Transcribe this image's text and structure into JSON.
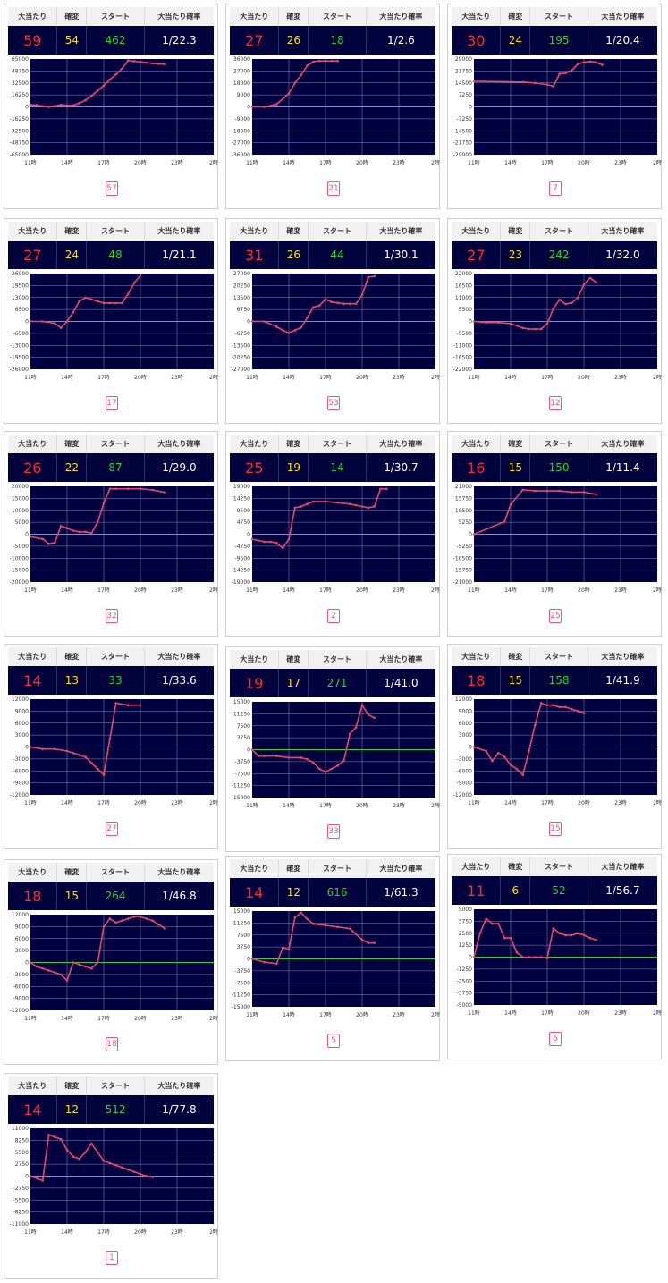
{
  "headers": {
    "hits": "大当たり",
    "kakuhen": "確変",
    "start": "スタート",
    "prob": "大当たり確率"
  },
  "x_ticks": [
    "11時",
    "14時",
    "17時",
    "20時",
    "23時",
    "2時"
  ],
  "colors": {
    "header_bg": "#f1f1f1",
    "value_bg": "#02023c",
    "hits": "#ff2a2a",
    "kakuhen": "#ffe100",
    "start": "#25d625",
    "prob": "#ffffff",
    "plot_bg": "#000040",
    "zero_line": "#3ad03a",
    "series": "#e8466e",
    "link": "#e8577a"
  },
  "cards": [
    {
      "hits": "59",
      "kakuhen": "54",
      "start": "462",
      "prob": "1/22.3",
      "page": "57"
    },
    {
      "hits": "27",
      "kakuhen": "26",
      "start": "18",
      "prob": "1/2.6",
      "page": "21"
    },
    {
      "hits": "30",
      "kakuhen": "24",
      "start": "195",
      "prob": "1/20.4",
      "page": "7"
    },
    {
      "hits": "27",
      "kakuhen": "24",
      "start": "48",
      "prob": "1/21.1",
      "page": "17"
    },
    {
      "hits": "31",
      "kakuhen": "26",
      "start": "44",
      "prob": "1/30.1",
      "page": "53"
    },
    {
      "hits": "27",
      "kakuhen": "23",
      "start": "242",
      "prob": "1/32.0",
      "page": "12"
    },
    {
      "hits": "26",
      "kakuhen": "22",
      "start": "87",
      "prob": "1/29.0",
      "page": "32"
    },
    {
      "hits": "25",
      "kakuhen": "19",
      "start": "14",
      "prob": "1/30.7",
      "page": "2"
    },
    {
      "hits": "16",
      "kakuhen": "15",
      "start": "150",
      "prob": "1/11.4",
      "page": "25"
    },
    {
      "hits": "14",
      "kakuhen": "13",
      "start": "33",
      "prob": "1/33.6",
      "page": "27"
    },
    {
      "hits": "19",
      "kakuhen": "17",
      "start": "271",
      "prob": "1/41.0",
      "page": "33"
    },
    {
      "hits": "18",
      "kakuhen": "15",
      "start": "158",
      "prob": "1/41.9",
      "page": "15"
    },
    {
      "hits": "18",
      "kakuhen": "15",
      "start": "264",
      "prob": "1/46.8",
      "page": "18"
    },
    {
      "hits": "14",
      "kakuhen": "12",
      "start": "616",
      "prob": "1/61.3",
      "page": "5"
    },
    {
      "hits": "11",
      "kakuhen": "6",
      "start": "52",
      "prob": "1/56.7",
      "page": "6"
    },
    {
      "hits": "14",
      "kakuhen": "12",
      "start": "512",
      "prob": "1/77.8",
      "page": "1"
    }
  ],
  "chart_data": [
    {
      "type": "line",
      "x_ticks": [
        "11時",
        "14時",
        "17時",
        "20時",
        "23時",
        "2時"
      ],
      "xlim": [
        11,
        26
      ],
      "ylim": [
        -65000,
        65000
      ],
      "y_ticks": [
        "65000",
        "48750",
        "32500",
        "16250",
        "0",
        "-16250",
        "-32500",
        "-48750",
        "-65000"
      ],
      "x": [
        11,
        11.5,
        12,
        12.5,
        13,
        13.5,
        14,
        14.5,
        15,
        15.5,
        16,
        16.5,
        17,
        17.5,
        18,
        18.5,
        19,
        19.5,
        20,
        20.5,
        21,
        21.5,
        22
      ],
      "y": [
        3000,
        2500,
        1000,
        0,
        1000,
        3000,
        2000,
        2000,
        5000,
        9000,
        15000,
        22000,
        29000,
        37000,
        44000,
        52000,
        63000,
        62000,
        61000,
        60000,
        59000,
        58500,
        58000
      ]
    },
    {
      "type": "line",
      "x_ticks": [
        "11時",
        "14時",
        "17時",
        "20時",
        "23時",
        "2時"
      ],
      "xlim": [
        11,
        26
      ],
      "ylim": [
        -36000,
        36000
      ],
      "y_ticks": [
        "36000",
        "27000",
        "18000",
        "9000",
        "0",
        "-9000",
        "-18000",
        "-27000",
        "-36000"
      ],
      "x": [
        11,
        12,
        13,
        14,
        14.5,
        15,
        15.5,
        16,
        16.5,
        17,
        17.5,
        18
      ],
      "y": [
        0,
        0,
        2000,
        10000,
        18000,
        24000,
        31000,
        34000,
        34500,
        34500,
        34500,
        34500
      ]
    },
    {
      "type": "line",
      "x_ticks": [
        "11時",
        "14時",
        "17時",
        "20時",
        "23時",
        "2時"
      ],
      "xlim": [
        11,
        26
      ],
      "ylim": [
        -29000,
        29000
      ],
      "y_ticks": [
        "29000",
        "21750",
        "14500",
        "7250",
        "0",
        "-7250",
        "-14500",
        "-21750",
        "-29000"
      ],
      "x": [
        11,
        15,
        16,
        17,
        17.5,
        18,
        18.5,
        19,
        19.5,
        20,
        20.5,
        21,
        21.5
      ],
      "y": [
        15500,
        15000,
        14500,
        13500,
        12500,
        20000,
        20500,
        22000,
        26000,
        27000,
        27500,
        27000,
        25500
      ]
    },
    {
      "type": "line",
      "x_ticks": [
        "11時",
        "14時",
        "17時",
        "20時",
        "23時",
        "2時"
      ],
      "xlim": [
        11,
        26
      ],
      "ylim": [
        -26000,
        26000
      ],
      "y_ticks": [
        "26000",
        "19500",
        "13000",
        "6500",
        "0",
        "-6500",
        "-13000",
        "-19500",
        "-26000"
      ],
      "x": [
        11,
        12,
        13,
        13.5,
        14,
        14.5,
        15,
        15.5,
        16,
        16.5,
        17,
        17.5,
        18,
        18.5,
        19,
        19.5,
        20
      ],
      "y": [
        0,
        0,
        -1000,
        -3500,
        0,
        5000,
        11000,
        13000,
        12000,
        11000,
        10000,
        10000,
        10000,
        10000,
        15000,
        21000,
        25000
      ]
    },
    {
      "type": "line",
      "x_ticks": [
        "11時",
        "14時",
        "17時",
        "20時",
        "23時",
        "2時"
      ],
      "xlim": [
        11,
        26
      ],
      "ylim": [
        -27000,
        27000
      ],
      "y_ticks": [
        "27000",
        "20250",
        "13500",
        "6750",
        "0",
        "-6750",
        "-13500",
        "-20250",
        "-27000"
      ],
      "x": [
        11,
        12,
        13,
        13.5,
        14,
        14.5,
        15,
        15.5,
        16,
        16.5,
        17,
        17.5,
        18,
        18.5,
        19,
        19.5,
        20,
        20.5,
        21
      ],
      "y": [
        0,
        0,
        -3000,
        -5000,
        -6500,
        -5000,
        -3500,
        2000,
        8000,
        9000,
        12500,
        11000,
        10500,
        10000,
        10000,
        10000,
        15000,
        25000,
        25500
      ]
    },
    {
      "type": "line",
      "x_ticks": [
        "11時",
        "14時",
        "17時",
        "20時",
        "23時",
        "2時"
      ],
      "xlim": [
        11,
        26
      ],
      "ylim": [
        -22000,
        22000
      ],
      "y_ticks": [
        "22000",
        "16500",
        "11000",
        "5500",
        "0",
        "-5500",
        "-11000",
        "-16500",
        "-22000"
      ],
      "x": [
        11,
        12,
        13,
        14,
        15,
        15.5,
        16,
        16.5,
        17,
        17.5,
        18,
        18.5,
        19,
        19.5,
        20,
        20.5,
        21
      ],
      "y": [
        0,
        -500,
        -500,
        -1000,
        -3000,
        -3500,
        -3500,
        -3500,
        -1000,
        6000,
        10000,
        8000,
        8500,
        11000,
        17000,
        20000,
        18000
      ]
    },
    {
      "type": "line",
      "x_ticks": [
        "11時",
        "14時",
        "17時",
        "20時",
        "23時",
        "2時"
      ],
      "xlim": [
        11,
        26
      ],
      "ylim": [
        -20000,
        20000
      ],
      "y_ticks": [
        "20000",
        "15000",
        "10000",
        "5000",
        "0",
        "-5000",
        "-10000",
        "-15000",
        "-20000"
      ],
      "x": [
        11,
        12,
        12.5,
        13,
        13.5,
        14,
        14.5,
        15,
        15.5,
        16,
        16.5,
        17,
        17.5,
        18,
        19,
        20,
        21,
        22
      ],
      "y": [
        -1000,
        -2000,
        -4000,
        -3500,
        3500,
        2500,
        1500,
        1000,
        1000,
        500,
        5000,
        13000,
        19000,
        19000,
        19000,
        19000,
        18500,
        17500
      ]
    },
    {
      "type": "line",
      "x_ticks": [
        "11時",
        "14時",
        "17時",
        "20時",
        "23時",
        "2時"
      ],
      "xlim": [
        11,
        26
      ],
      "ylim": [
        -19000,
        19000
      ],
      "y_ticks": [
        "19000",
        "14250",
        "9500",
        "4750",
        "0",
        "-4750",
        "-9500",
        "-14250",
        "-19000"
      ],
      "x": [
        11,
        11.5,
        12,
        12.5,
        13,
        13.5,
        14,
        14.5,
        15,
        15.5,
        16,
        17,
        18,
        19,
        19.5,
        20,
        20.5,
        21,
        21.5,
        22
      ],
      "y": [
        -2000,
        -2500,
        -3000,
        -3000,
        -3500,
        -5500,
        -2000,
        10500,
        11000,
        12000,
        13000,
        13000,
        12500,
        12000,
        11500,
        11000,
        10500,
        11000,
        18000,
        18000
      ]
    },
    {
      "type": "line",
      "x_ticks": [
        "11時",
        "14時",
        "17時",
        "20時",
        "23時",
        "2時"
      ],
      "xlim": [
        11,
        26
      ],
      "ylim": [
        -21000,
        21000
      ],
      "y_ticks": [
        "21000",
        "15750",
        "10500",
        "5250",
        "0",
        "-5250",
        "-10500",
        "-15750",
        "-21000"
      ],
      "x": [
        11,
        13.5,
        14,
        15,
        16,
        17,
        18,
        19,
        20,
        21
      ],
      "y": [
        0,
        5500,
        13000,
        19500,
        19000,
        19000,
        19000,
        18500,
        18500,
        17500
      ]
    },
    {
      "type": "line",
      "x_ticks": [
        "11時",
        "14時",
        "17時",
        "20時",
        "23時",
        "2時"
      ],
      "xlim": [
        11,
        26
      ],
      "ylim": [
        -12000,
        12000
      ],
      "y_ticks": [
        "12000",
        "9000",
        "6000",
        "3000",
        "0",
        "-3000",
        "-6000",
        "-9000",
        "-12000"
      ],
      "x": [
        11,
        12,
        13,
        14,
        14.5,
        15,
        15.5,
        16,
        16.5,
        17,
        17.5,
        18,
        19,
        20
      ],
      "y": [
        0,
        -500,
        -500,
        -1000,
        -1500,
        -2000,
        -2500,
        -4000,
        -5500,
        -7000,
        2000,
        11000,
        10500,
        10500
      ]
    },
    {
      "type": "line",
      "x_ticks": [
        "11時",
        "14時",
        "17時",
        "20時",
        "23時",
        "2時"
      ],
      "xlim": [
        11,
        26
      ],
      "ylim": [
        -15000,
        15000
      ],
      "y_ticks": [
        "15000",
        "11250",
        "7500",
        "3750",
        "0",
        "-3750",
        "-7500",
        "-11250",
        "-15000"
      ],
      "x": [
        11,
        11.5,
        12,
        13,
        14,
        15,
        15.5,
        16,
        16.5,
        17,
        17.5,
        18,
        18.5,
        19,
        19.5,
        20,
        20.5,
        21
      ],
      "y": [
        0,
        -2000,
        -2000,
        -2000,
        -2500,
        -2500,
        -3000,
        -4000,
        -6000,
        -7000,
        -6000,
        -5000,
        -3500,
        5000,
        7000,
        14000,
        11000,
        10000
      ]
    },
    {
      "type": "line",
      "x_ticks": [
        "11時",
        "14時",
        "17時",
        "20時",
        "23時",
        "2時"
      ],
      "xlim": [
        11,
        26
      ],
      "ylim": [
        -12000,
        12000
      ],
      "y_ticks": [
        "12000",
        "9000",
        "6000",
        "3000",
        "0",
        "-3000",
        "-6000",
        "-9000",
        "-12000"
      ],
      "x": [
        11,
        12,
        12.5,
        13,
        13.5,
        14,
        14.5,
        15,
        15.5,
        16,
        16.5,
        17,
        17.5,
        18,
        18.5,
        19,
        19.5,
        20
      ],
      "y": [
        0,
        -1000,
        -3500,
        -1500,
        -2500,
        -4500,
        -5500,
        -7000,
        -1000,
        5500,
        11000,
        10500,
        10500,
        10000,
        10000,
        9500,
        9000,
        8500
      ]
    },
    {
      "type": "line",
      "x_ticks": [
        "11時",
        "14時",
        "17時",
        "20時",
        "23時",
        "2時"
      ],
      "xlim": [
        11,
        26
      ],
      "ylim": [
        -12000,
        12000
      ],
      "y_ticks": [
        "12000",
        "9000",
        "6000",
        "3000",
        "0",
        "-3000",
        "-6000",
        "-9000",
        "-12000"
      ],
      "x": [
        11,
        11.5,
        12,
        12.5,
        13,
        13.5,
        14,
        14.5,
        15,
        15.5,
        16,
        16.5,
        17,
        17.5,
        18,
        18.5,
        19,
        19.5,
        20,
        20.5,
        21,
        21.5,
        22
      ],
      "y": [
        0,
        -1000,
        -1500,
        -2000,
        -2500,
        -3000,
        -4500,
        0,
        -500,
        -1000,
        -1500,
        0,
        9000,
        11000,
        10000,
        10500,
        11000,
        11500,
        11500,
        11000,
        10500,
        9500,
        8500
      ]
    },
    {
      "type": "line",
      "x_ticks": [
        "11時",
        "14時",
        "17時",
        "20時",
        "23時",
        "2時"
      ],
      "xlim": [
        11,
        26
      ],
      "ylim": [
        -15000,
        15000
      ],
      "y_ticks": [
        "15000",
        "11250",
        "7500",
        "3750",
        "0",
        "-3750",
        "-7500",
        "-11250",
        "-15000"
      ],
      "x": [
        11,
        12,
        13,
        13.5,
        14,
        14.5,
        15,
        15.5,
        16,
        17,
        18,
        19,
        20,
        20.5,
        21
      ],
      "y": [
        0,
        -1000,
        -1500,
        3500,
        3000,
        13000,
        14500,
        12500,
        11000,
        10500,
        10000,
        9500,
        6000,
        5000,
        5000
      ]
    },
    {
      "type": "line",
      "x_ticks": [
        "11時",
        "14時",
        "17時",
        "20時",
        "23時",
        "2時"
      ],
      "xlim": [
        11,
        26
      ],
      "ylim": [
        -5000,
        5000
      ],
      "y_ticks": [
        "5000",
        "3750",
        "2500",
        "1250",
        "0",
        "-1250",
        "-2500",
        "-3750",
        "-5000"
      ],
      "x": [
        11,
        11.5,
        12,
        12.5,
        13,
        13.5,
        14,
        14.5,
        15,
        15.5,
        16,
        16.5,
        17,
        17.5,
        18,
        18.5,
        19,
        19.5,
        20,
        20.5,
        21
      ],
      "y": [
        0,
        2500,
        4000,
        3500,
        3500,
        2000,
        2000,
        500,
        0,
        0,
        0,
        0,
        -100,
        3000,
        2500,
        2300,
        2300,
        2500,
        2300,
        2000,
        1800
      ]
    },
    {
      "type": "line",
      "x_ticks": [
        "11時",
        "14時",
        "17時",
        "20時",
        "23時",
        "2時"
      ],
      "xlim": [
        11,
        26
      ],
      "ylim": [
        -11000,
        11000
      ],
      "y_ticks": [
        "11000",
        "8250",
        "5500",
        "2750",
        "0",
        "-2750",
        "-5500",
        "-8250",
        "-11000"
      ],
      "x": [
        11,
        11.5,
        12,
        12.5,
        13,
        13.5,
        14,
        14.5,
        15,
        15.5,
        16,
        16.5,
        17,
        17.5,
        18,
        18.5,
        19,
        19.5,
        20,
        20.5,
        21
      ],
      "y": [
        0,
        -500,
        -1000,
        9500,
        9000,
        8500,
        6000,
        4500,
        4000,
        5500,
        7500,
        5500,
        3500,
        3000,
        2500,
        2000,
        1500,
        1000,
        500,
        0,
        -200
      ]
    }
  ]
}
